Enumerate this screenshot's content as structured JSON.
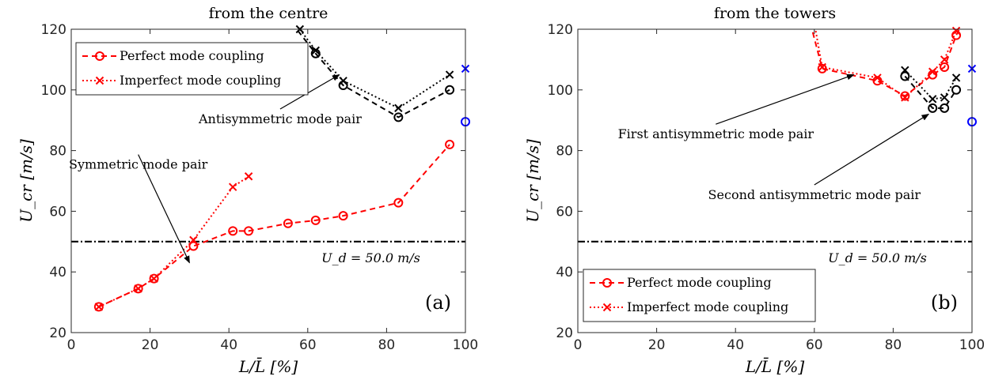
{
  "colors": {
    "red": "#ff0000",
    "black": "#000000",
    "blue": "#0000ff"
  },
  "chart_data": [
    {
      "type": "line",
      "panel": "(a)",
      "title": "from the centre",
      "xlabel": "L/L̄ [%]",
      "ylabel": "U_cr [m/s]",
      "xlim": [
        0,
        100
      ],
      "ylim": [
        20,
        120
      ],
      "xticks": [
        "0",
        "20",
        "40",
        "60",
        "80",
        "100"
      ],
      "yticks": [
        "20",
        "40",
        "60",
        "80",
        "100",
        "120"
      ],
      "grid": false,
      "legend": {
        "placement": "top-left",
        "entries": [
          "Perfect mode coupling",
          "Imperfect mode coupling"
        ]
      },
      "series": [
        {
          "name": "Perfect mode coupling",
          "color": "#ff0000",
          "marker": "o",
          "line": "dashed",
          "x": [
            7,
            17,
            21,
            31,
            41,
            45,
            55,
            62,
            69,
            83,
            96
          ],
          "y": [
            28.5,
            34.5,
            37.8,
            48.5,
            53.5,
            53.5,
            56,
            57,
            58.5,
            62.8,
            82
          ]
        },
        {
          "name": "Imperfect mode coupling",
          "color": "#ff0000",
          "marker": "x",
          "line": "dotted",
          "x": [
            7,
            17,
            21,
            31,
            41,
            45
          ],
          "y": [
            28.5,
            34.5,
            37.8,
            50.5,
            68,
            71.5
          ]
        },
        {
          "color": "#000000",
          "marker": "o",
          "line": "dashed",
          "x": [
            56,
            62,
            69,
            83,
            96
          ],
          "y": [
            122,
            112,
            101.5,
            91,
            100
          ]
        },
        {
          "color": "#000000",
          "marker": "x",
          "line": "dotted",
          "x": [
            58,
            62,
            69,
            83,
            96
          ],
          "y": [
            120,
            113,
            103,
            94,
            105
          ]
        },
        {
          "color": "#0000ff",
          "marker": "o",
          "line": "none",
          "x": [
            100
          ],
          "y": [
            89.5
          ]
        },
        {
          "color": "#0000ff",
          "marker": "x",
          "line": "none",
          "x": [
            100
          ],
          "y": [
            107
          ]
        }
      ],
      "reference_line": {
        "y": 50,
        "label": "U_d = 50.0 m/s",
        "style": "dash-dot"
      },
      "annotations": [
        {
          "text": "Antisymmetric mode pair",
          "tx": 53,
          "ty": 89,
          "ax": 68,
          "ay": 105,
          "anchor": "middle"
        },
        {
          "text": "Symmetric mode pair",
          "tx": 17,
          "ty": 74,
          "ax": 30,
          "ay": 43,
          "anchor": "middle"
        }
      ]
    },
    {
      "type": "line",
      "panel": "(b)",
      "title": "from the towers",
      "xlabel": "L/L̄ [%]",
      "ylabel": "U_cr [m/s]",
      "xlim": [
        0,
        100
      ],
      "ylim": [
        20,
        120
      ],
      "xticks": [
        "0",
        "20",
        "40",
        "60",
        "80",
        "100"
      ],
      "yticks": [
        "20",
        "40",
        "60",
        "80",
        "100",
        "120"
      ],
      "grid": false,
      "legend": {
        "placement": "bottom-left",
        "entries": [
          "Perfect mode coupling",
          "Imperfect mode coupling"
        ]
      },
      "series": [
        {
          "name": "Perfect mode coupling",
          "color": "#ff0000",
          "marker": "o",
          "line": "dashed",
          "x": [
            59,
            62,
            76,
            83,
            90,
            93,
            96,
            98
          ],
          "y": [
            122,
            107,
            103,
            98,
            105,
            107.5,
            118,
            123
          ]
        },
        {
          "name": "Imperfect mode coupling",
          "color": "#ff0000",
          "marker": "x",
          "line": "dotted",
          "x": [
            60,
            62,
            76,
            83,
            90,
            93,
            96,
            98
          ],
          "y": [
            122,
            107.5,
            104,
            97.5,
            106,
            110,
            119.5,
            124
          ]
        },
        {
          "color": "#000000",
          "marker": "o",
          "line": "dashed",
          "x": [
            83,
            90,
            93,
            96
          ],
          "y": [
            104.5,
            94,
            94,
            100
          ]
        },
        {
          "color": "#000000",
          "marker": "x",
          "line": "dotted",
          "x": [
            83,
            90,
            93,
            96
          ],
          "y": [
            106.5,
            97,
            97.5,
            104
          ]
        },
        {
          "color": "#0000ff",
          "marker": "o",
          "line": "none",
          "x": [
            100
          ],
          "y": [
            89.5
          ]
        },
        {
          "color": "#0000ff",
          "marker": "x",
          "line": "none",
          "x": [
            100
          ],
          "y": [
            107
          ]
        }
      ],
      "reference_line": {
        "y": 50,
        "label": "U_d = 50.0 m/s",
        "style": "dash-dot"
      },
      "annotations": [
        {
          "text": "First antisymmetric mode pair",
          "tx": 35,
          "ty": 84,
          "ax": 70,
          "ay": 105,
          "anchor": "middle"
        },
        {
          "text": "Second antisymmetric mode pair",
          "tx": 60,
          "ty": 64,
          "ax": 89,
          "ay": 92,
          "anchor": "middle"
        }
      ]
    }
  ]
}
